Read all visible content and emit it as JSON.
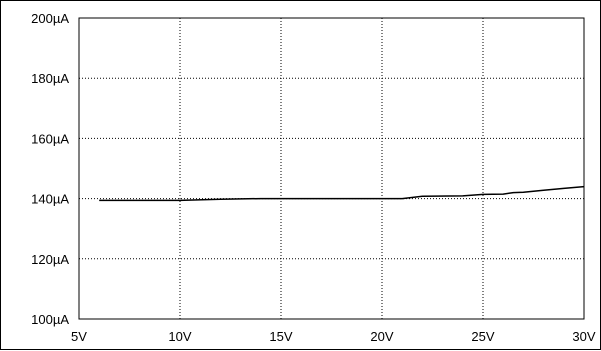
{
  "chart_data": {
    "type": "line",
    "title": "",
    "xlabel": "",
    "ylabel": "",
    "xlim": [
      5,
      30
    ],
    "ylim": [
      100,
      200
    ],
    "x_ticks": [
      {
        "value": 5,
        "label": "5V"
      },
      {
        "value": 10,
        "label": "10V"
      },
      {
        "value": 15,
        "label": "15V"
      },
      {
        "value": 20,
        "label": "20V"
      },
      {
        "value": 25,
        "label": "25V"
      },
      {
        "value": 30,
        "label": "30V"
      }
    ],
    "y_ticks": [
      {
        "value": 100,
        "label": "100µA"
      },
      {
        "value": 120,
        "label": "120µA"
      },
      {
        "value": 140,
        "label": "140µA"
      },
      {
        "value": 160,
        "label": "160µA"
      },
      {
        "value": 180,
        "label": "180µA"
      },
      {
        "value": 200,
        "label": "200µA"
      }
    ],
    "grid": true,
    "legend": "none",
    "series": [
      {
        "color": "#000000",
        "points": [
          [
            6,
            139.4
          ],
          [
            8,
            139.4
          ],
          [
            10,
            139.4
          ],
          [
            12,
            139.8
          ],
          [
            14,
            140.0
          ],
          [
            16,
            140.0
          ],
          [
            18,
            140.0
          ],
          [
            20,
            140.0
          ],
          [
            21,
            140.0
          ],
          [
            22,
            140.8
          ],
          [
            24,
            140.9
          ],
          [
            25,
            141.4
          ],
          [
            26,
            141.5
          ],
          [
            26.5,
            142.0
          ],
          [
            27,
            142.1
          ],
          [
            28,
            142.8
          ],
          [
            29,
            143.4
          ],
          [
            30,
            144.0
          ]
        ]
      }
    ]
  }
}
